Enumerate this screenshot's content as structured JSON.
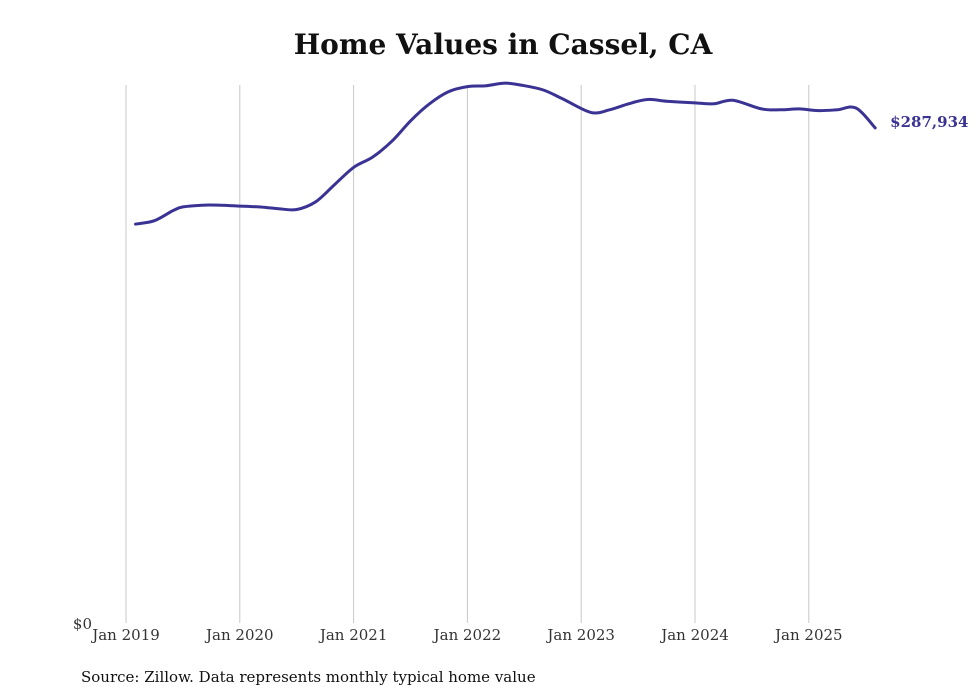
{
  "chart_data": {
    "type": "line",
    "title": "Home Values in Cassel, CA",
    "xlabel": "",
    "ylabel": "",
    "y_tick_labels": [
      "$0"
    ],
    "x_tick_labels": [
      "Jan 2019",
      "Jan 2020",
      "Jan 2021",
      "Jan 2022",
      "Jan 2023",
      "Jan 2024",
      "Jan 2025"
    ],
    "ylim": [
      0,
      310000
    ],
    "grid": "vertical lines at each January",
    "line_color": "#3b3394",
    "end_label": "$287,934",
    "series": [
      {
        "values": [
          [
            "2019-02",
            232000
          ],
          [
            "2019-04",
            234000
          ],
          [
            "2019-06",
            240000
          ],
          [
            "2019-07",
            242000
          ],
          [
            "2019-09",
            243000
          ],
          [
            "2019-11",
            243000
          ],
          [
            "2020-01",
            242500
          ],
          [
            "2020-03",
            242000
          ],
          [
            "2020-05",
            241000
          ],
          [
            "2020-07",
            240500
          ],
          [
            "2020-09",
            245000
          ],
          [
            "2020-11",
            255000
          ],
          [
            "2021-01",
            265000
          ],
          [
            "2021-03",
            271000
          ],
          [
            "2021-05",
            280000
          ],
          [
            "2021-07",
            292000
          ],
          [
            "2021-09",
            302000
          ],
          [
            "2021-11",
            309000
          ],
          [
            "2022-01",
            312000
          ],
          [
            "2022-03",
            312500
          ],
          [
            "2022-05",
            314000
          ],
          [
            "2022-07",
            312500
          ],
          [
            "2022-09",
            310000
          ],
          [
            "2022-11",
            305000
          ],
          [
            "2023-02",
            297000
          ],
          [
            "2023-04",
            298500
          ],
          [
            "2023-06",
            302000
          ],
          [
            "2023-08",
            304500
          ],
          [
            "2023-10",
            303500
          ],
          [
            "2024-01",
            302500
          ],
          [
            "2024-03",
            302000
          ],
          [
            "2024-05",
            304000
          ],
          [
            "2024-08",
            299000
          ],
          [
            "2024-10",
            298500
          ],
          [
            "2024-12",
            299000
          ],
          [
            "2025-02",
            298000
          ],
          [
            "2025-04",
            298500
          ],
          [
            "2025-06",
            299500
          ],
          [
            "2025-08",
            287934
          ]
        ]
      }
    ]
  },
  "footer": {
    "source": "Source: Zillow. Data represents monthly typical home value"
  }
}
